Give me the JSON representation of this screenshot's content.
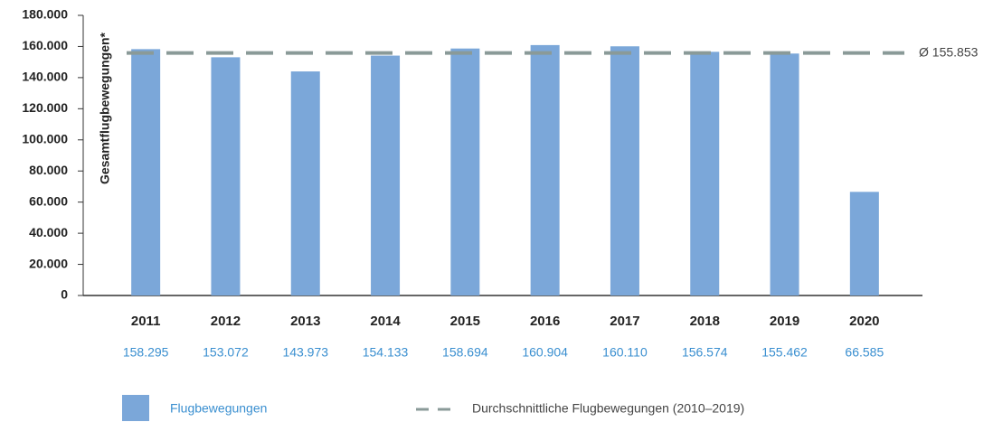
{
  "chart_data": {
    "type": "bar",
    "y_label": "Gesamtflugbewegungen*",
    "categories": [
      "2011",
      "2012",
      "2013",
      "2014",
      "2015",
      "2016",
      "2017",
      "2018",
      "2019",
      "2020"
    ],
    "series": [
      {
        "name": "Flugbewegungen",
        "color": "#7ba7d9",
        "values": [
          158295,
          153072,
          143973,
          154133,
          158694,
          160904,
          160110,
          156574,
          155462,
          66585
        ],
        "value_labels": [
          "158.295",
          "153.072",
          "143.973",
          "154.133",
          "158.694",
          "160.904",
          "160.110",
          "156.574",
          "155.462",
          "66.585"
        ]
      }
    ],
    "average": {
      "name": "Durchschnittliche Flugbewegungen (2010–2019)",
      "value": 155853,
      "label": "Ø 155.853",
      "color": "#8a9a98"
    },
    "ylim": [
      0,
      180000
    ],
    "yticks": [
      0,
      {
        "value": 20000,
        "label": "20.000"
      },
      {
        "value": 40000,
        "label": "40.000"
      },
      {
        "value": 60000,
        "label": "60.000"
      },
      {
        "value": 80000,
        "label": "80.000"
      },
      {
        "value": 100000,
        "label": "100.000"
      },
      {
        "value": 120000,
        "label": "120.000"
      },
      {
        "value": 140000,
        "label": "140.000"
      },
      {
        "value": 160000,
        "label": "160.000"
      },
      {
        "value": 180000,
        "label": "180.000"
      }
    ]
  }
}
